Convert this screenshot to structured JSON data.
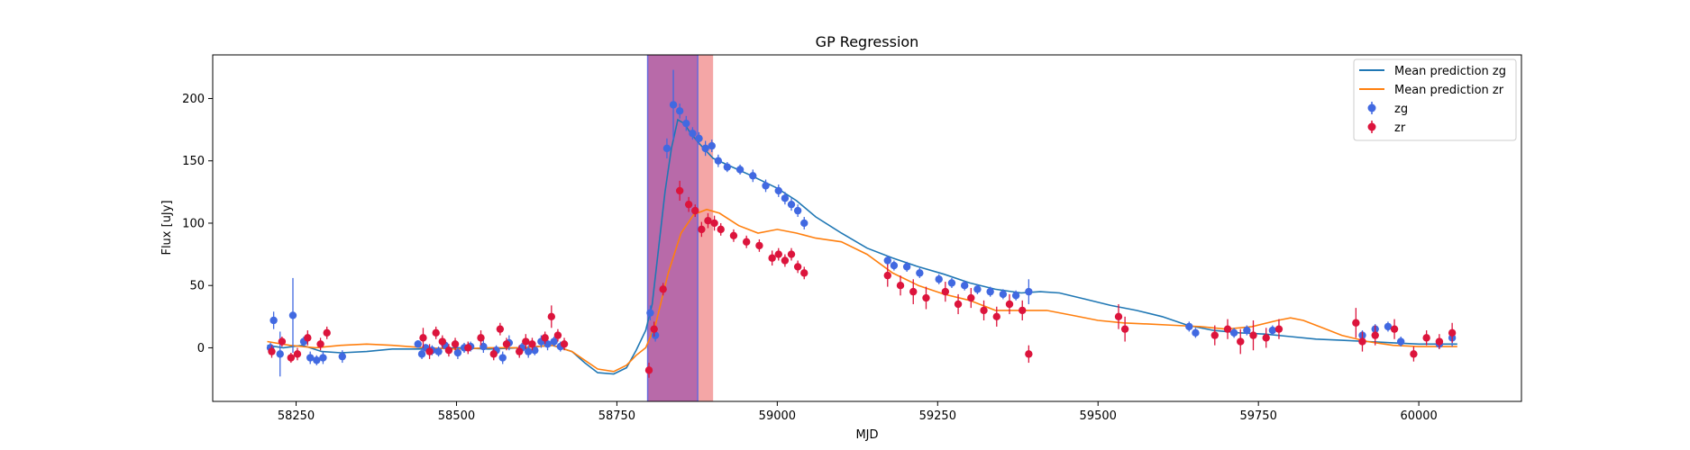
{
  "chart_data": {
    "type": "scatter",
    "title": "GP Regression",
    "xlabel": "MJD",
    "ylabel": "Flux [uJy]",
    "xlim": [
      58120,
      60160
    ],
    "ylim": [
      -43,
      235
    ],
    "xticks": [
      58250,
      58500,
      58750,
      59000,
      59250,
      59500,
      59750,
      60000
    ],
    "yticks": [
      0,
      50,
      100,
      150,
      200
    ],
    "grid": false,
    "legend_position": "top-right",
    "shaded_regions": [
      {
        "x0": 58798,
        "x1": 58900,
        "color": "#f4a6a6"
      },
      {
        "x0": 58798,
        "x1": 58876,
        "color": "#b86aa9"
      }
    ],
    "series": [
      {
        "name": "Mean prediction zg",
        "kind": "line",
        "color": "#1f77b4",
        "x": [
          58205,
          58230,
          58260,
          58290,
          58320,
          58360,
          58400,
          58450,
          58500,
          58550,
          58600,
          58650,
          58680,
          58700,
          58720,
          58745,
          58765,
          58780,
          58795,
          58805,
          58815,
          58825,
          58835,
          58845,
          58855,
          58865,
          58880,
          58900,
          58930,
          58960,
          59000,
          59030,
          59060,
          59100,
          59140,
          59180,
          59220,
          59260,
          59300,
          59340,
          59380,
          59410,
          59440,
          59480,
          59520,
          59560,
          59600,
          59640,
          59680,
          59720,
          59760,
          59800,
          59840,
          59880,
          59920,
          59960,
          60000,
          60030,
          60060
        ],
        "y": [
          2,
          0,
          2,
          -3,
          -4,
          -3,
          -1,
          -1,
          0,
          -1,
          0,
          2,
          -3,
          -12,
          -20,
          -21,
          -16,
          -2,
          14,
          35,
          80,
          125,
          160,
          183,
          180,
          172,
          163,
          152,
          145,
          138,
          128,
          118,
          105,
          92,
          80,
          72,
          65,
          59,
          52,
          47,
          44,
          45,
          44,
          39,
          34,
          30,
          25,
          18,
          14,
          12,
          11,
          9,
          7,
          6,
          5,
          4,
          3,
          3,
          3
        ]
      },
      {
        "name": "Mean prediction zr",
        "kind": "line",
        "color": "#ff7f0e",
        "x": [
          58205,
          58240,
          58280,
          58320,
          58360,
          58400,
          58450,
          58500,
          58550,
          58600,
          58650,
          58680,
          58700,
          58720,
          58745,
          58765,
          58780,
          58795,
          58810,
          58830,
          58850,
          58870,
          58890,
          58910,
          58940,
          58970,
          59000,
          59030,
          59060,
          59100,
          59140,
          59180,
          59220,
          59260,
          59300,
          59340,
          59380,
          59420,
          59460,
          59500,
          59540,
          59580,
          59620,
          59660,
          59700,
          59740,
          59780,
          59800,
          59820,
          59850,
          59880,
          59920,
          59960,
          60000,
          60030,
          60060
        ],
        "y": [
          5,
          2,
          0,
          2,
          3,
          2,
          0,
          -1,
          0,
          0,
          2,
          -3,
          -10,
          -17,
          -19,
          -14,
          -6,
          0,
          18,
          60,
          92,
          107,
          111,
          108,
          98,
          92,
          95,
          92,
          88,
          85,
          75,
          60,
          50,
          43,
          38,
          30,
          30,
          30,
          26,
          22,
          20,
          19,
          18,
          17,
          15,
          17,
          22,
          24,
          22,
          16,
          10,
          5,
          2,
          1,
          1,
          1
        ]
      },
      {
        "name": "zg",
        "kind": "errorbar",
        "color": "#4169e1",
        "x": [
          58210,
          58215,
          58225,
          58245,
          58262,
          58272,
          58282,
          58292,
          58322,
          58440,
          58446,
          58452,
          58462,
          58472,
          58482,
          58502,
          58512,
          58522,
          58542,
          58562,
          58572,
          58582,
          58602,
          58612,
          58622,
          58632,
          58642,
          58652,
          58662,
          58802,
          58810,
          58828,
          58838,
          58848,
          58858,
          58868,
          58878,
          58888,
          58898,
          58908,
          58922,
          58942,
          58962,
          58982,
          59002,
          59012,
          59022,
          59032,
          59042,
          59172,
          59182,
          59202,
          59222,
          59252,
          59272,
          59292,
          59312,
          59332,
          59352,
          59372,
          59392,
          59642,
          59652,
          59712,
          59732,
          59772,
          59912,
          59932,
          59952,
          59972,
          60032,
          60052
        ],
        "y": [
          0,
          22,
          -5,
          26,
          5,
          -8,
          -10,
          -8,
          -7,
          3,
          -5,
          0,
          -2,
          -3,
          2,
          -4,
          0,
          1,
          1,
          -2,
          -8,
          4,
          0,
          -3,
          -2,
          5,
          3,
          5,
          1,
          28,
          10,
          160,
          195,
          190,
          180,
          172,
          168,
          160,
          162,
          150,
          145,
          143,
          138,
          130,
          126,
          120,
          115,
          110,
          100,
          70,
          66,
          65,
          60,
          55,
          52,
          50,
          47,
          45,
          43,
          42,
          45,
          17,
          12,
          12,
          14,
          14,
          10,
          15,
          17,
          5,
          3,
          8
        ],
        "err": [
          4,
          7,
          18,
          30,
          4,
          5,
          4,
          5,
          5,
          3,
          4,
          3,
          4,
          4,
          3,
          5,
          4,
          4,
          5,
          4,
          5,
          6,
          4,
          5,
          4,
          5,
          5,
          4,
          4,
          6,
          5,
          8,
          28,
          6,
          6,
          5,
          5,
          6,
          5,
          5,
          4,
          4,
          5,
          5,
          5,
          5,
          5,
          5,
          5,
          4,
          4,
          4,
          4,
          4,
          4,
          4,
          4,
          4,
          4,
          4,
          10,
          4,
          4,
          4,
          4,
          4,
          4,
          4,
          4,
          4,
          4,
          7
        ]
      },
      {
        "name": "zr",
        "kind": "errorbar",
        "color": "#dc143c",
        "x": [
          58212,
          58228,
          58242,
          58252,
          58268,
          58288,
          58298,
          58448,
          58458,
          58468,
          58478,
          58488,
          58498,
          58518,
          58538,
          58558,
          58568,
          58578,
          58598,
          58608,
          58618,
          58638,
          58648,
          58658,
          58668,
          58800,
          58808,
          58822,
          58848,
          58862,
          58872,
          58882,
          58892,
          58902,
          58912,
          58932,
          58952,
          58972,
          58992,
          59002,
          59012,
          59022,
          59032,
          59042,
          59172,
          59192,
          59212,
          59232,
          59262,
          59282,
          59302,
          59322,
          59342,
          59362,
          59382,
          59392,
          59532,
          59542,
          59682,
          59702,
          59722,
          59742,
          59762,
          59782,
          59902,
          59912,
          59932,
          59962,
          59992,
          60012,
          60032,
          60052
        ],
        "y": [
          -3,
          5,
          -8,
          -5,
          8,
          3,
          12,
          8,
          -3,
          12,
          5,
          -2,
          3,
          0,
          8,
          -5,
          15,
          3,
          -3,
          5,
          3,
          8,
          25,
          10,
          3,
          -18,
          15,
          47,
          126,
          115,
          110,
          95,
          102,
          100,
          95,
          90,
          85,
          82,
          72,
          75,
          70,
          75,
          65,
          60,
          58,
          50,
          45,
          40,
          45,
          35,
          40,
          30,
          25,
          35,
          30,
          -5,
          25,
          15,
          10,
          15,
          5,
          10,
          8,
          15,
          20,
          5,
          10,
          15,
          -5,
          8,
          5,
          12
        ],
        "err": [
          5,
          4,
          4,
          5,
          6,
          5,
          5,
          8,
          6,
          5,
          5,
          5,
          5,
          5,
          6,
          5,
          5,
          5,
          5,
          6,
          5,
          5,
          9,
          5,
          5,
          6,
          6,
          5,
          8,
          6,
          5,
          6,
          6,
          6,
          5,
          5,
          5,
          5,
          6,
          5,
          5,
          5,
          5,
          5,
          9,
          8,
          10,
          9,
          8,
          8,
          8,
          8,
          8,
          8,
          8,
          7,
          10,
          10,
          8,
          8,
          10,
          12,
          8,
          8,
          12,
          8,
          8,
          8,
          6,
          6,
          6,
          8
        ]
      }
    ]
  }
}
